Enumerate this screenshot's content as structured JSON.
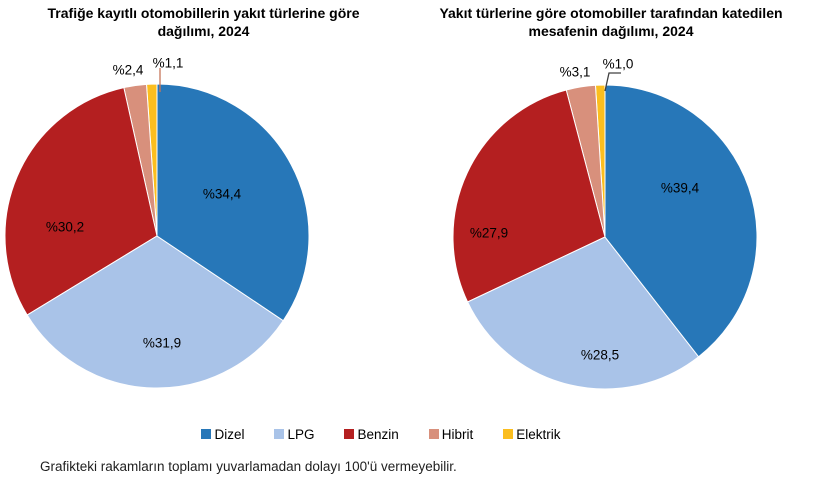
{
  "page": {
    "background": "#FFFFFF",
    "footnote": "Grafikteki rakamların toplamı yuvarlamadan dolayı 100'ü vermeyebilir."
  },
  "legend": {
    "position": "bottom-center",
    "items": [
      {
        "label": "Dizel",
        "color": "#2777B8"
      },
      {
        "label": "LPG",
        "color": "#A9C3E8"
      },
      {
        "label": "Benzin",
        "color": "#B41F20"
      },
      {
        "label": "Hibrit",
        "color": "#D8907C"
      },
      {
        "label": "Elektrik",
        "color": "#FBBE1F"
      }
    ]
  },
  "chart_data": [
    {
      "type": "pie",
      "title": "Trafiğe kayıtlı otomobillerin yakıt türlerine göre dağılımı, 2024",
      "title_lines": [
        "Trafiğe kayıtlı otomobillerin yakıt türlerine göre",
        "dağılımı, 2024"
      ],
      "categories": [
        "Dizel",
        "LPG",
        "Benzin",
        "Hibrit",
        "Elektrik"
      ],
      "values": [
        34.4,
        31.9,
        30.2,
        2.4,
        1.1
      ],
      "labels": [
        "%34,4",
        "%31,9",
        "%30,2",
        "%2,4",
        "%1,1"
      ],
      "colors": [
        "#2777B8",
        "#A9C3E8",
        "#B41F20",
        "#D8907C",
        "#FBBE1F"
      ],
      "start_angle_deg": 0,
      "direction": "clockwise",
      "legend_position": "bottom",
      "leader_line_color": "#C6765A"
    },
    {
      "type": "pie",
      "title": "Yakıt türlerine göre otomobiller tarafından katedilen mesafenin dağılımı, 2024",
      "title_lines": [
        "Yakıt türlerine göre otomobiller tarafından katedilen",
        "mesafenin dağılımı, 2024"
      ],
      "categories": [
        "Dizel",
        "LPG",
        "Benzin",
        "Hibrit",
        "Elektrik"
      ],
      "values": [
        39.4,
        28.5,
        27.9,
        3.1,
        1.0
      ],
      "labels": [
        "%39,4",
        "%28,5",
        "%27,9",
        "%3,1",
        "%1,0"
      ],
      "colors": [
        "#2777B8",
        "#A9C3E8",
        "#B41F20",
        "#D8907C",
        "#FBBE1F"
      ],
      "start_angle_deg": 0,
      "direction": "clockwise",
      "legend_position": "bottom",
      "leader_line_color": "#404040"
    }
  ]
}
